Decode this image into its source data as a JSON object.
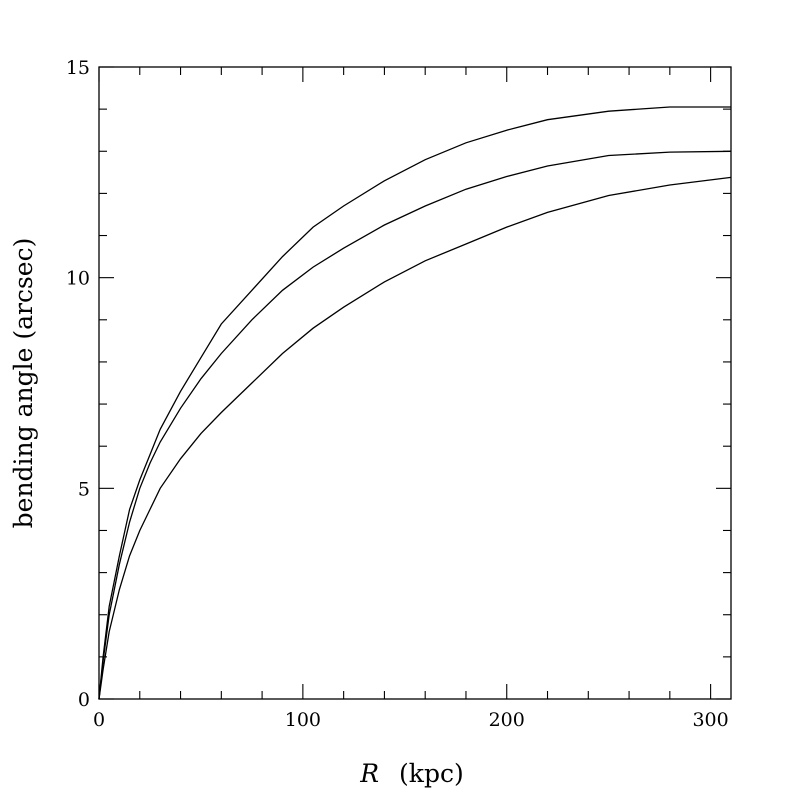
{
  "chart_data": {
    "type": "line",
    "title": "",
    "xlabel_var": "R",
    "xlabel_unit": "(kpc)",
    "ylabel": "bending angle (arcsec)",
    "xlim": [
      0,
      310
    ],
    "ylim": [
      0,
      15
    ],
    "x_ticks": [
      0,
      100,
      200,
      300
    ],
    "x_tick_labels": [
      "0",
      "100",
      "200",
      "300"
    ],
    "y_ticks": [
      0,
      5,
      10,
      15
    ],
    "y_tick_labels": [
      "0",
      "5",
      "10",
      "15"
    ],
    "x_minor_step": 20,
    "y_minor_step": 1,
    "grid": false,
    "series": [
      {
        "x": [
          0,
          2,
          5,
          10,
          15,
          20,
          25,
          30,
          40,
          50,
          60,
          75,
          90,
          105,
          120,
          140,
          160,
          180,
          200,
          220,
          250,
          280,
          310
        ],
        "values": [
          0,
          1.0,
          2.2,
          3.4,
          4.5,
          5.2,
          5.8,
          6.4,
          7.3,
          8.1,
          8.9,
          9.7,
          10.5,
          11.2,
          11.7,
          12.3,
          12.8,
          13.2,
          13.5,
          13.75,
          13.95,
          14.05,
          14.05
        ]
      },
      {
        "x": [
          0,
          2,
          5,
          10,
          15,
          20,
          25,
          30,
          40,
          50,
          60,
          75,
          90,
          105,
          120,
          140,
          160,
          180,
          200,
          220,
          250,
          280,
          310
        ],
        "values": [
          0,
          0.9,
          2.0,
          3.2,
          4.2,
          5.0,
          5.6,
          6.1,
          6.9,
          7.6,
          8.2,
          9.0,
          9.7,
          10.25,
          10.7,
          11.25,
          11.7,
          12.1,
          12.4,
          12.65,
          12.9,
          12.98,
          13.0
        ]
      },
      {
        "x": [
          0,
          2,
          5,
          10,
          15,
          20,
          25,
          30,
          40,
          50,
          60,
          75,
          90,
          105,
          120,
          140,
          160,
          180,
          200,
          220,
          250,
          280,
          310
        ],
        "values": [
          0,
          0.7,
          1.6,
          2.6,
          3.4,
          4.0,
          4.5,
          5.0,
          5.7,
          6.3,
          6.8,
          7.5,
          8.2,
          8.8,
          9.3,
          9.9,
          10.4,
          10.8,
          11.2,
          11.55,
          11.95,
          12.2,
          12.38
        ]
      }
    ]
  }
}
